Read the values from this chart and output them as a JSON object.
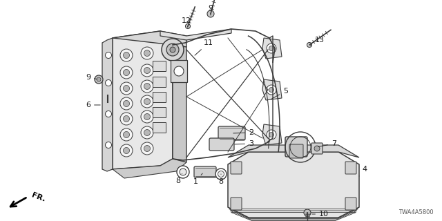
{
  "bg_color": "#ffffff",
  "text_color": "#1a1a1a",
  "line_color": "#2a2a2a",
  "diagram_color": "#3a3a3a",
  "part_code": "TWA4A5800",
  "figsize": [
    6.4,
    3.2
  ],
  "dpi": 100
}
